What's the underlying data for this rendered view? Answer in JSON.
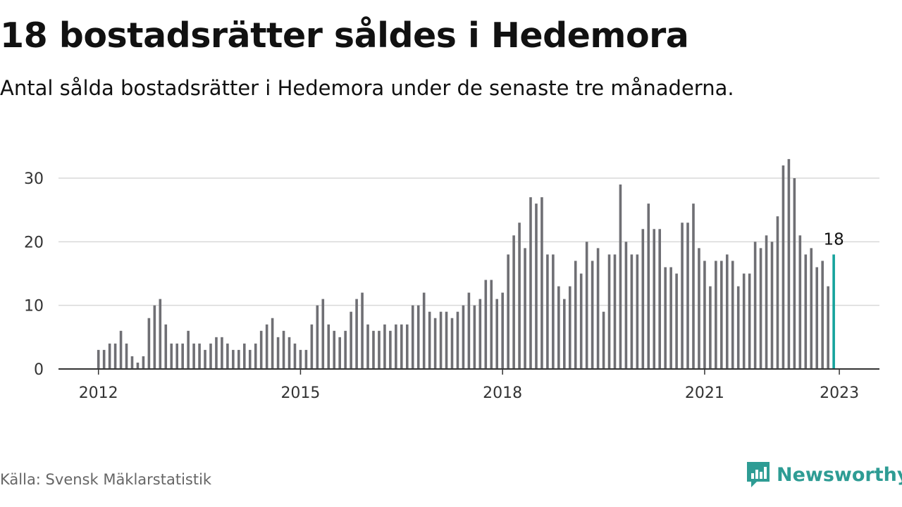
{
  "header": {
    "title": "18 bostadsrätter såldes i Hedemora",
    "subtitle": "Antal sålda bostadsrätter i Hedemora under de senaste tre månaderna."
  },
  "footer": {
    "source": "Källa: Svensk Mäklarstatistik",
    "brand": "Newsworthy"
  },
  "colors": {
    "bar": "#6f6f74",
    "highlight": "#16a39c",
    "grid": "#d9d9d9",
    "axis": "#333333",
    "brand": "#2e9c94"
  },
  "chart_data": {
    "type": "bar",
    "x_start": "2012-01",
    "x_ticks": [
      "2012",
      "2015",
      "2018",
      "2021",
      "2023"
    ],
    "y_ticks": [
      "0",
      "10",
      "20",
      "30"
    ],
    "ylim": [
      0,
      35
    ],
    "grid": true,
    "values": [
      3,
      3,
      4,
      4,
      6,
      4,
      2,
      1,
      2,
      8,
      10,
      11,
      7,
      4,
      4,
      4,
      6,
      4,
      4,
      3,
      4,
      5,
      5,
      4,
      3,
      3,
      4,
      3,
      4,
      6,
      7,
      8,
      5,
      6,
      5,
      4,
      3,
      3,
      7,
      10,
      11,
      7,
      6,
      5,
      6,
      9,
      11,
      12,
      7,
      6,
      6,
      7,
      6,
      7,
      7,
      7,
      10,
      10,
      12,
      9,
      8,
      9,
      9,
      8,
      9,
      10,
      12,
      10,
      11,
      14,
      14,
      11,
      12,
      18,
      21,
      23,
      19,
      27,
      26,
      27,
      18,
      18,
      13,
      11,
      13,
      17,
      15,
      20,
      17,
      19,
      9,
      18,
      18,
      29,
      20,
      18,
      18,
      22,
      26,
      22,
      22,
      16,
      16,
      15,
      23,
      23,
      26,
      19,
      17,
      13,
      17,
      17,
      18,
      17,
      13,
      15,
      15,
      20,
      19,
      21,
      20,
      24,
      32,
      33,
      30,
      21,
      18,
      19,
      16,
      17,
      13,
      18
    ],
    "highlight_label": "18"
  }
}
